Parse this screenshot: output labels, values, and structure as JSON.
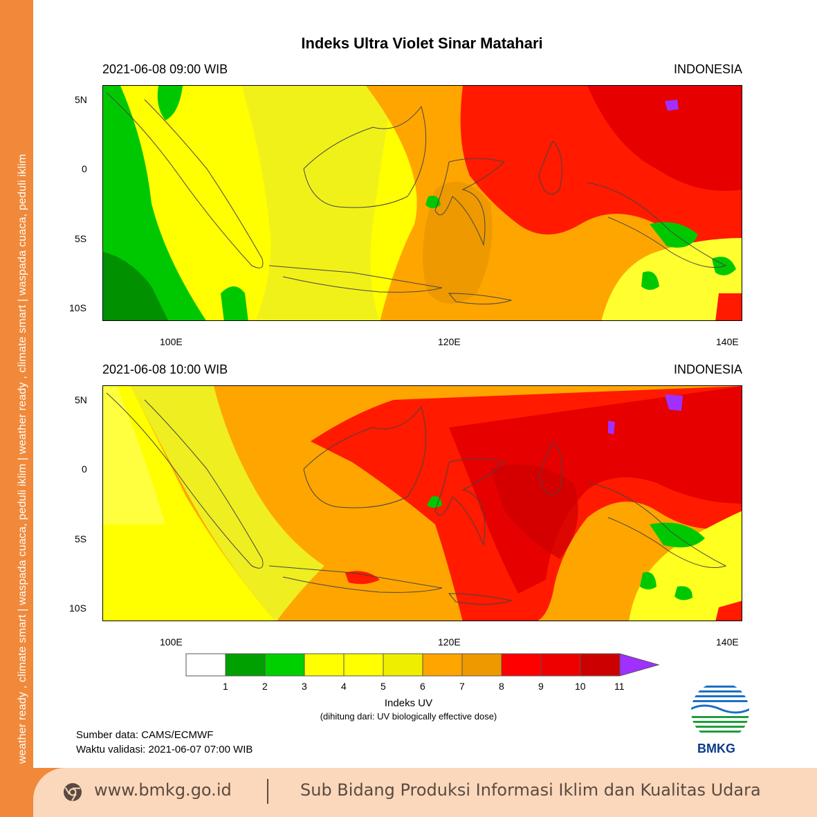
{
  "sidebar": {
    "text": "weather ready , climate smart   |   waspada cuaca, peduli iklim   |   weather ready , climate smart   |   waspada cuaca, peduli iklim"
  },
  "title": "Indeks Ultra Violet Sinar Matahari",
  "panels": [
    {
      "datetime": "2021-06-08  09:00 WIB",
      "region": "INDONESIA"
    },
    {
      "datetime": "2021-06-08  10:00 WIB",
      "region": "INDONESIA"
    }
  ],
  "axes": {
    "lat_labels": [
      "5N",
      "0",
      "5S",
      "10S"
    ],
    "lon_labels": [
      "100E",
      "120E",
      "140E"
    ]
  },
  "legend": {
    "title": "Indeks UV",
    "subtitle": "(dihitung dari: UV biologically effective dose)",
    "levels": [
      "1",
      "2",
      "3",
      "4",
      "5",
      "6",
      "7",
      "8",
      "9",
      "10",
      "11"
    ],
    "colors": [
      "#ffffff",
      "#00a000",
      "#00d000",
      "#ffff00",
      "#ffff00",
      "#eeee00",
      "#ffa500",
      "#ee9900",
      "#ff0000",
      "#ee0000",
      "#cc0000",
      "#a030ff"
    ]
  },
  "source": {
    "data": "Sumber data: CAMS/ECMWF",
    "valid": "Waktu validasi: 2021-06-07 07:00 WIB"
  },
  "logo": {
    "text": "BMKG"
  },
  "footer": {
    "url": "www.bmkg.go.id",
    "subtitle": "Sub Bidang Produksi Informasi Iklim dan Kualitas Udara"
  }
}
